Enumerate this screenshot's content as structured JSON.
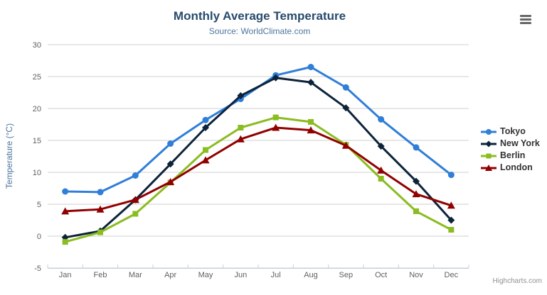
{
  "chart_data": {
    "type": "line",
    "title": "Monthly Average Temperature",
    "subtitle": "Source: WorldClimate.com",
    "xlabel": "",
    "ylabel": "Temperature (°C)",
    "ylim": [
      -5,
      30
    ],
    "ytick_step": 5,
    "yticks": [
      -5,
      0,
      5,
      10,
      15,
      20,
      25,
      30
    ],
    "grid": true,
    "legend_position": "right",
    "categories": [
      "Jan",
      "Feb",
      "Mar",
      "Apr",
      "May",
      "Jun",
      "Jul",
      "Aug",
      "Sep",
      "Oct",
      "Nov",
      "Dec"
    ],
    "series": [
      {
        "name": "Tokyo",
        "color": "#2f7ed8",
        "marker": "circle",
        "values": [
          7.0,
          6.9,
          9.5,
          14.5,
          18.2,
          21.5,
          25.2,
          26.5,
          23.3,
          18.3,
          13.9,
          9.6
        ]
      },
      {
        "name": "New York",
        "color": "#0d233a",
        "marker": "diamond",
        "values": [
          -0.2,
          0.8,
          5.7,
          11.3,
          17.0,
          22.0,
          24.8,
          24.1,
          20.1,
          14.1,
          8.6,
          2.5
        ]
      },
      {
        "name": "Berlin",
        "color": "#8bbc21",
        "marker": "square",
        "values": [
          -0.9,
          0.6,
          3.5,
          8.4,
          13.5,
          17.0,
          18.6,
          17.9,
          14.3,
          9.0,
          3.9,
          1.0
        ]
      },
      {
        "name": "London",
        "color": "#910000",
        "marker": "triangle",
        "values": [
          3.9,
          4.2,
          5.7,
          8.5,
          11.9,
          15.2,
          17.0,
          16.6,
          14.2,
          10.3,
          6.6,
          4.8
        ]
      }
    ]
  },
  "credits": {
    "label": "Highcharts.com"
  },
  "export_menu": {
    "icon": "hamburger-icon"
  },
  "colors": {
    "title": "#274b6d",
    "subtitle": "#4d759e",
    "axis_title": "#4d759e",
    "axis_labels": "#606060",
    "grid_line": "#cfcfcf",
    "axis_line": "#c0d0e0",
    "legend_text": "#333333",
    "credits": "#909090",
    "background": "#ffffff"
  }
}
